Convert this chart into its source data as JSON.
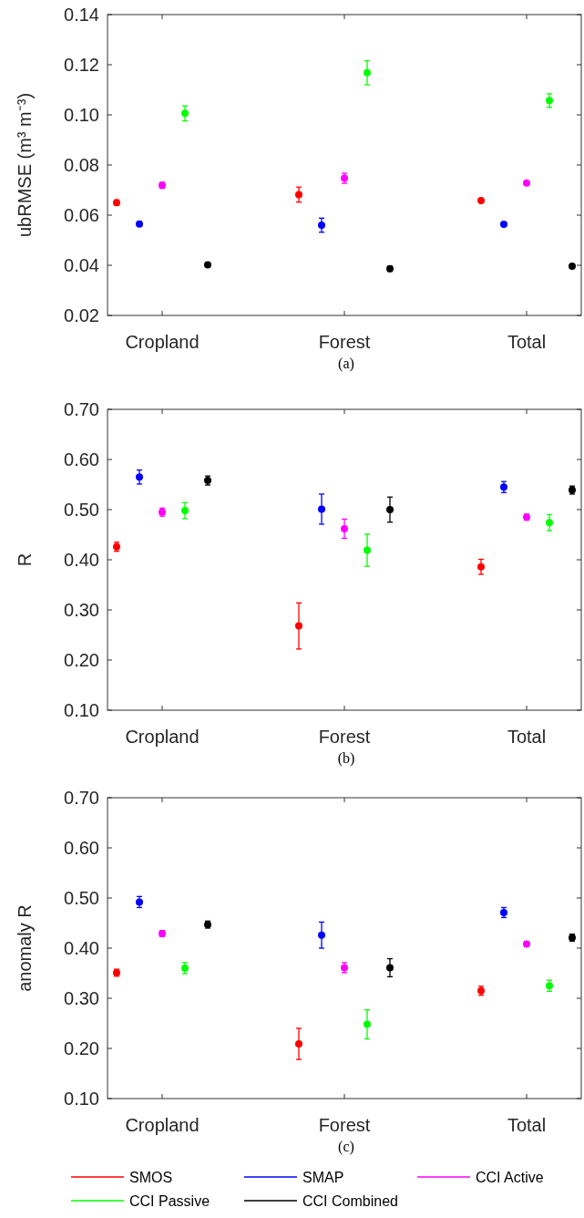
{
  "chart_data": [
    {
      "type": "scatter",
      "ylabel": "ubRMSE (m³ m⁻³)",
      "annotations": [
        "(a)"
      ],
      "categories": [
        "Cropland",
        "Forest",
        "Total"
      ],
      "ylim": [
        0.02,
        0.14
      ],
      "yticks": [
        {
          "value": 0.02,
          "label": "0.02"
        },
        {
          "value": 0.04,
          "label": "0.04"
        },
        {
          "value": 0.06,
          "label": "0.06"
        },
        {
          "value": 0.08,
          "label": "0.08"
        },
        {
          "value": 0.1,
          "label": "0.10"
        },
        {
          "value": 0.12,
          "label": "0.12"
        },
        {
          "value": 0.14,
          "label": "0.14"
        }
      ],
      "marker": "circle",
      "legend": false,
      "series": [
        {
          "color": "#ff0000",
          "values": [
            0.065,
            0.0682,
            0.0658
          ],
          "errors": [
            0.001,
            0.003,
            null
          ]
        },
        {
          "color": "#0000ff",
          "values": [
            0.0565,
            0.056,
            0.0564
          ],
          "errors": [
            0.001,
            0.0028,
            null
          ]
        },
        {
          "color": "#ff00ff",
          "values": [
            0.0719,
            0.0747,
            0.0728
          ],
          "errors": [
            0.0012,
            0.002,
            null
          ]
        },
        {
          "color": "#00ff00",
          "values": [
            0.1006,
            0.1168,
            0.1057
          ],
          "errors": [
            0.003,
            0.0048,
            0.0027
          ]
        },
        {
          "color": "#000000",
          "values": [
            0.0402,
            0.0386,
            0.0396
          ],
          "errors": [
            null,
            0.001,
            null
          ]
        }
      ]
    },
    {
      "type": "scatter",
      "ylabel": "R",
      "annotations": [
        "(b)"
      ],
      "categories": [
        "Cropland",
        "Forest",
        "Total"
      ],
      "ylim": [
        0.1,
        0.7
      ],
      "yticks": [
        {
          "value": 0.1,
          "label": "0.10"
        },
        {
          "value": 0.2,
          "label": "0.20"
        },
        {
          "value": 0.3,
          "label": "0.30"
        },
        {
          "value": 0.4,
          "label": "0.40"
        },
        {
          "value": 0.5,
          "label": "0.50"
        },
        {
          "value": 0.6,
          "label": "0.60"
        },
        {
          "value": 0.7,
          "label": "0.70"
        }
      ],
      "marker": "circle",
      "legend": false,
      "series": [
        {
          "color": "#ff0000",
          "values": [
            0.426,
            0.268,
            0.386
          ],
          "errors": [
            0.009,
            0.046,
            0.015
          ]
        },
        {
          "color": "#0000ff",
          "values": [
            0.565,
            0.501,
            0.545
          ],
          "errors": [
            0.014,
            0.03,
            0.011
          ]
        },
        {
          "color": "#ff00ff",
          "values": [
            0.495,
            0.462,
            0.485
          ],
          "errors": [
            0.008,
            0.019,
            0.006
          ]
        },
        {
          "color": "#00ff00",
          "values": [
            0.498,
            0.419,
            0.474
          ],
          "errors": [
            0.016,
            0.032,
            0.016
          ]
        },
        {
          "color": "#000000",
          "values": [
            0.558,
            0.5,
            0.539
          ],
          "errors": [
            0.009,
            0.025,
            0.008
          ]
        }
      ]
    },
    {
      "type": "scatter",
      "ylabel": "anomaly R",
      "annotations": [
        "(c)"
      ],
      "categories": [
        "Cropland",
        "Forest",
        "Total"
      ],
      "ylim": [
        0.1,
        0.7
      ],
      "yticks": [
        {
          "value": 0.1,
          "label": "0.10"
        },
        {
          "value": 0.2,
          "label": "0.20"
        },
        {
          "value": 0.3,
          "label": "0.30"
        },
        {
          "value": 0.4,
          "label": "0.40"
        },
        {
          "value": 0.5,
          "label": "0.50"
        },
        {
          "value": 0.6,
          "label": "0.60"
        },
        {
          "value": 0.7,
          "label": "0.70"
        }
      ],
      "marker": "circle",
      "legend": "bottom",
      "series": [
        {
          "name": "SMOS",
          "color": "#ff0000",
          "values": [
            0.351,
            0.209,
            0.315
          ],
          "errors": [
            0.007,
            0.031,
            0.009
          ]
        },
        {
          "name": "SMAP",
          "color": "#0000ff",
          "values": [
            0.492,
            0.426,
            0.471
          ],
          "errors": [
            0.011,
            0.026,
            0.01
          ]
        },
        {
          "name": "CCI Active",
          "color": "#ff00ff",
          "values": [
            0.429,
            0.361,
            0.408
          ],
          "errors": [
            0.006,
            0.01,
            0.005
          ]
        },
        {
          "name": "CCI Passive",
          "color": "#00ff00",
          "values": [
            0.36,
            0.248,
            0.325
          ],
          "errors": [
            0.011,
            0.029,
            0.011
          ]
        },
        {
          "name": "CCI Combined",
          "color": "#000000",
          "values": [
            0.447,
            0.361,
            0.421
          ],
          "errors": [
            0.007,
            0.018,
            0.007
          ]
        }
      ]
    }
  ]
}
